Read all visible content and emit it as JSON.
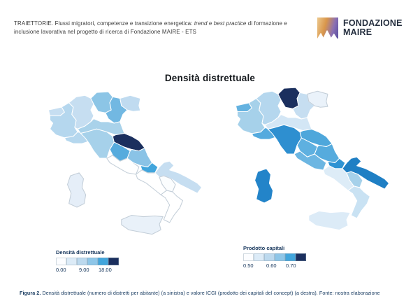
{
  "header": {
    "segments": [
      {
        "text": "TRAIETTORIE. Flussi migratori, competenze e transizione energetica: ",
        "italic": false
      },
      {
        "text": "trend",
        "italic": true
      },
      {
        "text": " e ",
        "italic": false
      },
      {
        "text": "best practice",
        "italic": true
      },
      {
        "text": " di formazione e inclusione lavorativa nel progetto di ricerca di Fondazione MAIRE - ETS",
        "italic": false
      }
    ]
  },
  "logo": {
    "line1": "FONDAZIONE",
    "line2": "MAIRE",
    "text_color": "#252f3f",
    "icon_gradient": [
      "#ecc98e",
      "#d9964a",
      "#8a70b4",
      "#5a50a0"
    ]
  },
  "figure": {
    "title": "Densità distrettuale"
  },
  "legend_swatches": [
    "#fcfdff",
    "#dcebf7",
    "#bcd9ee",
    "#8ec6e8",
    "#41a5dc",
    "#1b2f5e"
  ],
  "maps": [
    {
      "id": "densita-distrettuale",
      "legend_title": "Densità distrettuale",
      "ticks": [
        "0.00",
        "9.00",
        "18.00"
      ],
      "fills": {
        "valle-daosta": "#c6def1",
        "piemonte": "#b5d7ee",
        "liguria": "#b5d7ee",
        "lombardia": "#c6def1",
        "trentino-alto-adige": "#8cc5e6",
        "veneto": "#72b8e2",
        "friuli-venezia-giulia": "#c0dbf0",
        "emilia-romagna": "#a9d2ea",
        "toscana": "#a6d1ea",
        "marche": "#1b2f5e",
        "umbria": "#56abdd",
        "lazio": "#ffffff",
        "abruzzo": "#8ac3e6",
        "molise": "#41a5dc",
        "campania": "#ffffff",
        "puglia": "#c6def1",
        "basilicata": "#fbfdfe",
        "calabria": "#ffffff",
        "sicilia": "#e9f1f9",
        "sardegna": "#e5eef8"
      }
    },
    {
      "id": "prodotto-capitali",
      "legend_title": "Prodotto capitali",
      "ticks": [
        "0.50",
        "0.60",
        "0.70"
      ],
      "fills": {
        "valle-daosta": "#64b2e0",
        "piemonte": "#a6d1ea",
        "liguria": "#54aade",
        "lombardia": "#b5d7ee",
        "trentino-alto-adige": "#1b2f5e",
        "veneto": "#c6def1",
        "friuli-venezia-giulia": "#eaf2fa",
        "emilia-romagna": "#d3e6f5",
        "toscana": "#2e8fd0",
        "umbria": "#5eb0e0",
        "marche": "#4ea7db",
        "lazio": "#6cb6e2",
        "abruzzo": "#56abdd",
        "molise": "#2f93d3",
        "campania": "#ddecf7",
        "puglia": "#1f7fc4",
        "basilicata": "#a6d1ea",
        "calabria": "#c9e2f3",
        "sicilia": "#dcebf7",
        "sardegna": "#2384c9"
      }
    }
  ],
  "caption": {
    "bold": "Figura 2.",
    "text": " Densità distrettuale (numero di distretti per abitante) (a sinistra) e valore ICGI (prodotto dei capitali del concept) (a destra). Fonte: nostra elaborazione"
  }
}
